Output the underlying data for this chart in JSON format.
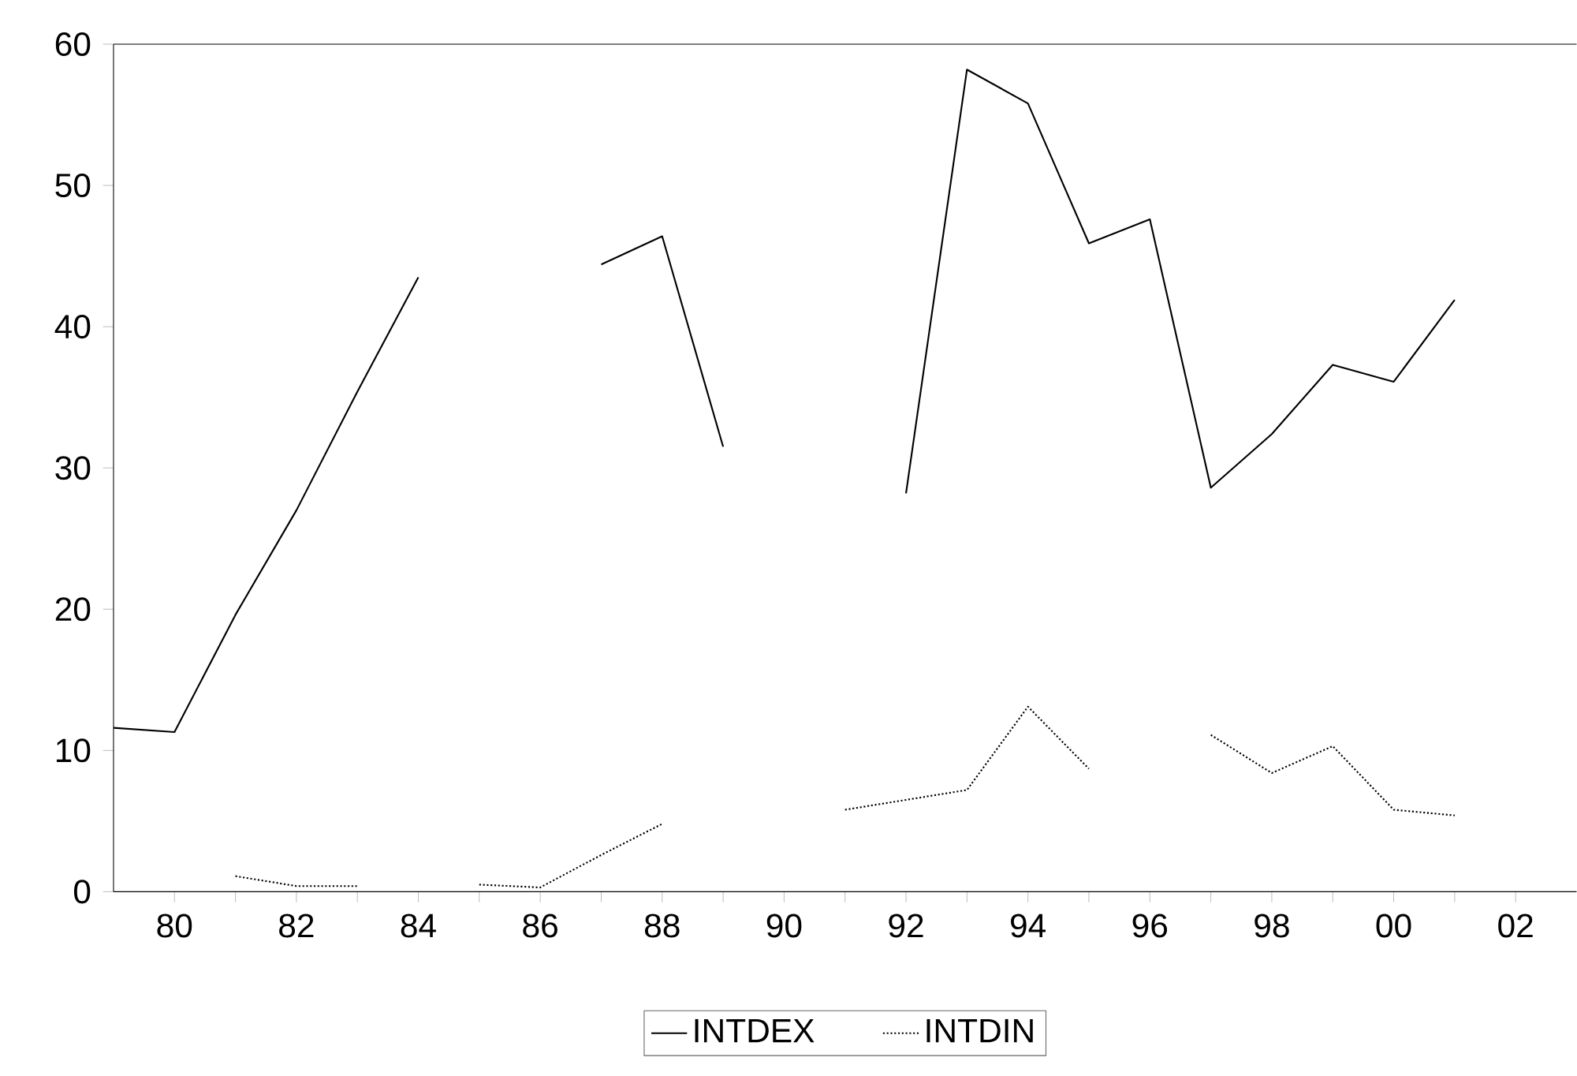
{
  "chart_data": {
    "type": "line",
    "x": [
      1979,
      1980,
      1981,
      1982,
      1983,
      1984,
      1985,
      1986,
      1987,
      1988,
      1989,
      1990,
      1991,
      1992,
      1993,
      1994,
      1995,
      1996,
      1997,
      1998,
      1999,
      2000,
      2001
    ],
    "series": [
      {
        "name": "INTDEX",
        "color": "#000000",
        "line_style": "solid",
        "values": [
          11.6,
          11.3,
          19.6,
          27,
          35.4,
          43.5,
          null,
          null,
          44.4,
          46.4,
          31.5,
          null,
          null,
          28.2,
          58.2,
          55.8,
          45.9,
          47.6,
          28.6,
          32.4,
          37.3,
          36.1,
          41.9
        ]
      },
      {
        "name": "INTDIN",
        "color": "#000000",
        "line_style": "dotted",
        "values": [
          null,
          null,
          1.1,
          0.4,
          0.4,
          null,
          0.5,
          0.3,
          2.6,
          4.8,
          null,
          null,
          5.8,
          6.5,
          7.2,
          13.1,
          8.7,
          null,
          11.1,
          8.4,
          10.3,
          5.8,
          5.4
        ]
      }
    ],
    "xlim": [
      1979,
      2003
    ],
    "xticks": [
      {
        "value": 1980,
        "label": "80"
      },
      {
        "value": 1981,
        "label": null
      },
      {
        "value": 1982,
        "label": "82"
      },
      {
        "value": 1983,
        "label": null
      },
      {
        "value": 1984,
        "label": "84"
      },
      {
        "value": 1985,
        "label": null
      },
      {
        "value": 1986,
        "label": "86"
      },
      {
        "value": 1987,
        "label": null
      },
      {
        "value": 1988,
        "label": "88"
      },
      {
        "value": 1989,
        "label": null
      },
      {
        "value": 1990,
        "label": "90"
      },
      {
        "value": 1991,
        "label": null
      },
      {
        "value": 1992,
        "label": "92"
      },
      {
        "value": 1993,
        "label": null
      },
      {
        "value": 1994,
        "label": "94"
      },
      {
        "value": 1995,
        "label": null
      },
      {
        "value": 1996,
        "label": "96"
      },
      {
        "value": 1997,
        "label": null
      },
      {
        "value": 1998,
        "label": "98"
      },
      {
        "value": 1999,
        "label": null
      },
      {
        "value": 2000,
        "label": "00"
      },
      {
        "value": 2001,
        "label": null
      },
      {
        "value": 2002,
        "label": "02"
      }
    ],
    "ylim": [
      0,
      60
    ],
    "yticks": [
      0,
      10,
      20,
      30,
      40,
      50,
      60
    ],
    "grid": false,
    "legend": "bottom"
  }
}
